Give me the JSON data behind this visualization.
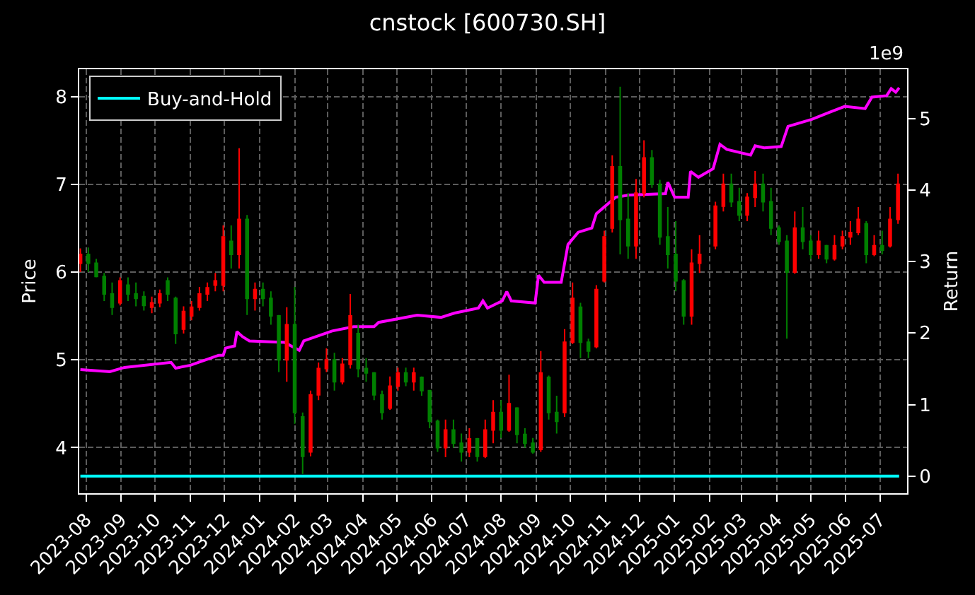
{
  "chart_data": {
    "type": "candlestick",
    "title": "cnstock [600730.SH]",
    "ylabel": "Price",
    "y2label": "Return",
    "annotations": [
      "1e9"
    ],
    "x": [
      "2023-07-27",
      "2023-08-03",
      "2023-08-10",
      "2023-08-17",
      "2023-08-24",
      "2023-08-31",
      "2023-09-07",
      "2023-09-14",
      "2023-09-21",
      "2023-09-28",
      "2023-10-05",
      "2023-10-12",
      "2023-10-19",
      "2023-10-26",
      "2023-11-02",
      "2023-11-09",
      "2023-11-16",
      "2023-11-23",
      "2023-11-30",
      "2023-12-07",
      "2023-12-14",
      "2023-12-21",
      "2023-12-28",
      "2024-01-04",
      "2024-01-11",
      "2024-01-18",
      "2024-01-25",
      "2024-02-01",
      "2024-02-08",
      "2024-02-15",
      "2024-02-22",
      "2024-02-29",
      "2024-03-07",
      "2024-03-14",
      "2024-03-21",
      "2024-03-28",
      "2024-04-04",
      "2024-04-11",
      "2024-04-18",
      "2024-04-25",
      "2024-05-02",
      "2024-05-09",
      "2024-05-16",
      "2024-05-23",
      "2024-05-30",
      "2024-06-06",
      "2024-06-13",
      "2024-06-20",
      "2024-06-27",
      "2024-07-04",
      "2024-07-11",
      "2024-07-18",
      "2024-07-25",
      "2024-08-01",
      "2024-08-08",
      "2024-08-15",
      "2024-08-22",
      "2024-08-29",
      "2024-09-05",
      "2024-09-12",
      "2024-09-19",
      "2024-09-26",
      "2024-10-03",
      "2024-10-10",
      "2024-10-17",
      "2024-10-24",
      "2024-10-31",
      "2024-11-07",
      "2024-11-14",
      "2024-11-21",
      "2024-11-28",
      "2024-12-05",
      "2024-12-12",
      "2024-12-19",
      "2024-12-26",
      "2025-01-02",
      "2025-01-09",
      "2025-01-16",
      "2025-01-23",
      "2025-02-06",
      "2025-02-13",
      "2025-02-20",
      "2025-02-27",
      "2025-03-06",
      "2025-03-13",
      "2025-03-20",
      "2025-03-27",
      "2025-04-03",
      "2025-04-10",
      "2025-04-17",
      "2025-04-24",
      "2025-05-01",
      "2025-05-08",
      "2025-05-15",
      "2025-05-22",
      "2025-05-29",
      "2025-06-05",
      "2025-06-12",
      "2025-06-19",
      "2025-06-26",
      "2025-07-03",
      "2025-07-10",
      "2025-07-17"
    ],
    "ohlc": [
      [
        6.1,
        6.27,
        6.0,
        6.2
      ],
      [
        6.2,
        6.28,
        6.0,
        6.1
      ],
      [
        6.1,
        6.15,
        5.94,
        5.95
      ],
      [
        5.95,
        5.99,
        5.67,
        5.75
      ],
      [
        5.75,
        5.88,
        5.51,
        5.6
      ],
      [
        5.65,
        5.94,
        5.62,
        5.9
      ],
      [
        5.85,
        5.94,
        5.67,
        5.75
      ],
      [
        5.75,
        5.88,
        5.61,
        5.7
      ],
      [
        5.72,
        5.78,
        5.56,
        5.62
      ],
      [
        5.6,
        5.72,
        5.53,
        5.65
      ],
      [
        5.65,
        5.8,
        5.6,
        5.75
      ],
      [
        5.9,
        5.94,
        5.67,
        5.75
      ],
      [
        5.7,
        5.72,
        5.18,
        5.3
      ],
      [
        5.35,
        5.61,
        5.3,
        5.55
      ],
      [
        5.5,
        5.67,
        5.45,
        5.6
      ],
      [
        5.6,
        5.83,
        5.56,
        5.75
      ],
      [
        5.75,
        5.88,
        5.67,
        5.82
      ],
      [
        5.85,
        5.99,
        5.78,
        5.9
      ],
      [
        5.85,
        6.53,
        5.78,
        6.4
      ],
      [
        6.35,
        6.53,
        6.04,
        6.2
      ],
      [
        6.2,
        7.41,
        6.04,
        6.6
      ],
      [
        6.6,
        6.65,
        5.51,
        5.7
      ],
      [
        5.7,
        5.88,
        5.56,
        5.8
      ],
      [
        5.8,
        5.88,
        5.61,
        5.7
      ],
      [
        5.7,
        5.78,
        5.4,
        5.5
      ],
      [
        5.5,
        5.51,
        4.86,
        5.0
      ],
      [
        5.0,
        5.6,
        4.75,
        5.4
      ],
      [
        5.4,
        5.83,
        4.27,
        4.4
      ],
      [
        4.35,
        4.4,
        3.7,
        3.9
      ],
      [
        3.95,
        4.65,
        3.9,
        4.6
      ],
      [
        4.6,
        4.97,
        4.54,
        4.9
      ],
      [
        4.9,
        5.13,
        4.86,
        5.0
      ],
      [
        5.0,
        5.08,
        4.65,
        4.75
      ],
      [
        4.75,
        5.02,
        4.72,
        4.95
      ],
      [
        4.95,
        5.75,
        4.9,
        5.5
      ],
      [
        5.3,
        5.4,
        4.8,
        4.9
      ],
      [
        4.9,
        5.02,
        4.75,
        4.85
      ],
      [
        4.85,
        4.86,
        4.54,
        4.6
      ],
      [
        4.6,
        4.65,
        4.32,
        4.4
      ],
      [
        4.45,
        4.81,
        4.43,
        4.7
      ],
      [
        4.7,
        4.91,
        4.65,
        4.85
      ],
      [
        4.85,
        4.91,
        4.7,
        4.75
      ],
      [
        4.75,
        4.91,
        4.65,
        4.85
      ],
      [
        4.8,
        4.81,
        4.59,
        4.65
      ],
      [
        4.65,
        4.65,
        4.22,
        4.3
      ],
      [
        4.3,
        4.32,
        3.95,
        4.0
      ],
      [
        4.0,
        4.32,
        3.89,
        4.2
      ],
      [
        4.2,
        4.32,
        4.0,
        4.05
      ],
      [
        4.05,
        4.16,
        3.84,
        3.95
      ],
      [
        3.95,
        4.22,
        3.89,
        4.1
      ],
      [
        4.1,
        4.11,
        3.84,
        3.9
      ],
      [
        3.9,
        4.32,
        3.88,
        4.2
      ],
      [
        4.2,
        4.54,
        4.05,
        4.4
      ],
      [
        4.4,
        4.54,
        4.11,
        4.2
      ],
      [
        4.2,
        4.83,
        4.18,
        4.5
      ],
      [
        4.45,
        4.46,
        4.05,
        4.15
      ],
      [
        4.15,
        4.22,
        4.0,
        4.05
      ],
      [
        4.05,
        4.11,
        3.93,
        3.95
      ],
      [
        3.98,
        5.1,
        3.95,
        4.85
      ],
      [
        4.8,
        4.82,
        4.32,
        4.4
      ],
      [
        4.4,
        4.59,
        4.16,
        4.3
      ],
      [
        4.4,
        5.35,
        4.35,
        5.2
      ],
      [
        5.2,
        5.88,
        5.18,
        5.7
      ],
      [
        5.6,
        5.65,
        5.02,
        5.2
      ],
      [
        5.2,
        5.24,
        5.02,
        5.1
      ],
      [
        5.15,
        5.85,
        5.13,
        5.8
      ],
      [
        5.9,
        6.47,
        5.88,
        6.4
      ],
      [
        6.5,
        7.33,
        6.45,
        7.2
      ],
      [
        7.2,
        8.11,
        6.2,
        6.6
      ],
      [
        6.6,
        6.9,
        6.15,
        6.3
      ],
      [
        6.3,
        7.06,
        6.15,
        6.9
      ],
      [
        6.9,
        7.5,
        6.85,
        7.3
      ],
      [
        7.3,
        7.39,
        6.96,
        7.0
      ],
      [
        7.0,
        7.05,
        6.31,
        6.4
      ],
      [
        6.4,
        6.74,
        6.04,
        6.2
      ],
      [
        6.2,
        6.58,
        5.78,
        5.9
      ],
      [
        5.9,
        5.92,
        5.4,
        5.5
      ],
      [
        5.5,
        6.26,
        5.4,
        6.1
      ],
      [
        6.1,
        6.42,
        5.99,
        6.2
      ],
      [
        6.3,
        6.8,
        6.26,
        6.75
      ],
      [
        6.75,
        7.12,
        6.69,
        7.0
      ],
      [
        7.0,
        7.12,
        6.74,
        6.8
      ],
      [
        6.8,
        6.96,
        6.58,
        6.65
      ],
      [
        6.65,
        6.9,
        6.58,
        6.85
      ],
      [
        6.85,
        7.15,
        6.74,
        7.0
      ],
      [
        7.0,
        7.12,
        6.69,
        6.8
      ],
      [
        6.8,
        6.96,
        6.42,
        6.5
      ],
      [
        6.5,
        6.53,
        6.31,
        6.35
      ],
      [
        6.35,
        6.42,
        5.24,
        6.0
      ],
      [
        6.0,
        6.69,
        5.98,
        6.5
      ],
      [
        6.5,
        6.74,
        6.26,
        6.35
      ],
      [
        6.35,
        6.42,
        6.15,
        6.2
      ],
      [
        6.2,
        6.47,
        6.15,
        6.35
      ],
      [
        6.3,
        6.31,
        6.1,
        6.15
      ],
      [
        6.15,
        6.42,
        6.13,
        6.3
      ],
      [
        6.3,
        6.47,
        6.26,
        6.4
      ],
      [
        6.4,
        6.58,
        6.31,
        6.45
      ],
      [
        6.45,
        6.74,
        6.42,
        6.6
      ],
      [
        6.55,
        6.58,
        6.1,
        6.2
      ],
      [
        6.2,
        6.42,
        6.18,
        6.3
      ],
      [
        6.3,
        6.47,
        6.2,
        6.25
      ],
      [
        6.3,
        6.74,
        6.28,
        6.6
      ],
      [
        6.6,
        7.12,
        6.55,
        7.0
      ]
    ],
    "colors": [
      "#ff0000",
      "#008000",
      "#008000",
      "#008000",
      "#008000",
      "#ff0000",
      "#008000",
      "#008000",
      "#008000",
      "#ff0000",
      "#ff0000",
      "#008000",
      "#008000",
      "#ff0000",
      "#ff0000",
      "#ff0000",
      "#ff0000",
      "#ff0000",
      "#ff0000",
      "#008000",
      "#ff0000",
      "#008000",
      "#ff0000",
      "#008000",
      "#008000",
      "#008000",
      "#ff0000",
      "#008000",
      "#008000",
      "#ff0000",
      "#ff0000",
      "#ff0000",
      "#008000",
      "#ff0000",
      "#ff0000",
      "#008000",
      "#008000",
      "#008000",
      "#008000",
      "#ff0000",
      "#ff0000",
      "#008000",
      "#ff0000",
      "#008000",
      "#008000",
      "#008000",
      "#ff0000",
      "#008000",
      "#008000",
      "#ff0000",
      "#008000",
      "#ff0000",
      "#ff0000",
      "#008000",
      "#ff0000",
      "#008000",
      "#008000",
      "#008000",
      "#ff0000",
      "#008000",
      "#008000",
      "#ff0000",
      "#ff0000",
      "#008000",
      "#008000",
      "#ff0000",
      "#ff0000",
      "#ff0000",
      "#008000",
      "#008000",
      "#ff0000",
      "#ff0000",
      "#008000",
      "#008000",
      "#008000",
      "#008000",
      "#008000",
      "#ff0000",
      "#ff0000",
      "#ff0000",
      "#ff0000",
      "#008000",
      "#008000",
      "#ff0000",
      "#ff0000",
      "#008000",
      "#008000",
      "#008000",
      "#008000",
      "#ff0000",
      "#008000",
      "#008000",
      "#ff0000",
      "#008000",
      "#ff0000",
      "#ff0000",
      "#ff0000",
      "#ff0000",
      "#008000",
      "#ff0000",
      "#008000",
      "#ff0000",
      "#ff0000"
    ],
    "series": [
      {
        "type": "line",
        "axis": "y2",
        "color": "#ff00ff",
        "x": [
          "2023-07-27",
          "2023-08-22",
          "2023-09-04",
          "2023-10-15",
          "2023-10-19",
          "2023-11-01",
          "2023-11-26",
          "2023-11-30",
          "2023-12-02",
          "2023-12-10",
          "2023-12-12",
          "2023-12-17",
          "2023-12-23",
          "2024-01-23",
          "2024-02-05",
          "2024-02-09",
          "2024-03-05",
          "2024-03-24",
          "2024-04-11",
          "2024-04-15",
          "2024-05-19",
          "2024-06-09",
          "2024-06-21",
          "2024-07-12",
          "2024-07-16",
          "2024-07-20",
          "2024-08-02",
          "2024-08-06",
          "2024-08-10",
          "2024-08-31",
          "2024-09-03",
          "2024-09-08",
          "2024-09-23",
          "2024-09-29",
          "2024-10-08",
          "2024-10-20",
          "2024-10-24",
          "2024-11-10",
          "2024-11-22",
          "2024-12-24",
          "2024-12-26",
          "2025-01-01",
          "2025-01-13",
          "2025-01-15",
          "2025-01-22",
          "2025-02-04",
          "2025-02-10",
          "2025-02-16",
          "2025-03-09",
          "2025-03-13",
          "2025-03-21",
          "2025-04-05",
          "2025-04-11",
          "2025-05-02",
          "2025-05-18",
          "2025-05-31",
          "2025-06-18",
          "2025-06-24",
          "2025-07-07",
          "2025-07-11",
          "2025-07-15",
          "2025-07-18"
        ],
        "values": [
          1.49,
          1.46,
          1.52,
          1.59,
          1.51,
          1.55,
          1.69,
          1.69,
          1.79,
          1.82,
          2.02,
          1.95,
          1.89,
          1.87,
          1.76,
          1.89,
          2.03,
          2.09,
          2.09,
          2.15,
          2.25,
          2.22,
          2.28,
          2.35,
          2.45,
          2.35,
          2.45,
          2.58,
          2.45,
          2.42,
          2.81,
          2.71,
          2.71,
          3.24,
          3.41,
          3.47,
          3.67,
          3.9,
          3.93,
          3.95,
          4.11,
          3.9,
          3.9,
          4.26,
          4.18,
          4.3,
          4.64,
          4.57,
          4.49,
          4.62,
          4.59,
          4.61,
          4.89,
          4.99,
          5.09,
          5.17,
          5.14,
          5.3,
          5.32,
          5.42,
          5.37,
          5.43
        ]
      },
      {
        "type": "line",
        "axis": "y2",
        "name": "Buy-and-Hold",
        "color": "#00ffff",
        "x": [
          "2023-07-27",
          "2025-07-18"
        ],
        "values": [
          0,
          0
        ]
      }
    ],
    "xlim": [
      "2023-07-26",
      "2025-07-25"
    ],
    "xticks": [
      "2023-08",
      "2023-09",
      "2023-10",
      "2023-11",
      "2023-12",
      "2024-01",
      "2024-02",
      "2024-03",
      "2024-04",
      "2024-05",
      "2024-06",
      "2024-07",
      "2024-08",
      "2024-09",
      "2024-10",
      "2024-11",
      "2024-12",
      "2025-01",
      "2025-02",
      "2025-03",
      "2025-04",
      "2025-05",
      "2025-06",
      "2025-07"
    ],
    "ylim": [
      3.48,
      8.31
    ],
    "yticks": [
      4,
      5,
      6,
      7,
      8
    ],
    "y2lim": [
      -0.24,
      5.69
    ],
    "y2ticks": [
      0,
      1,
      2,
      3,
      4,
      5
    ],
    "grid": true,
    "legend": "top left"
  }
}
